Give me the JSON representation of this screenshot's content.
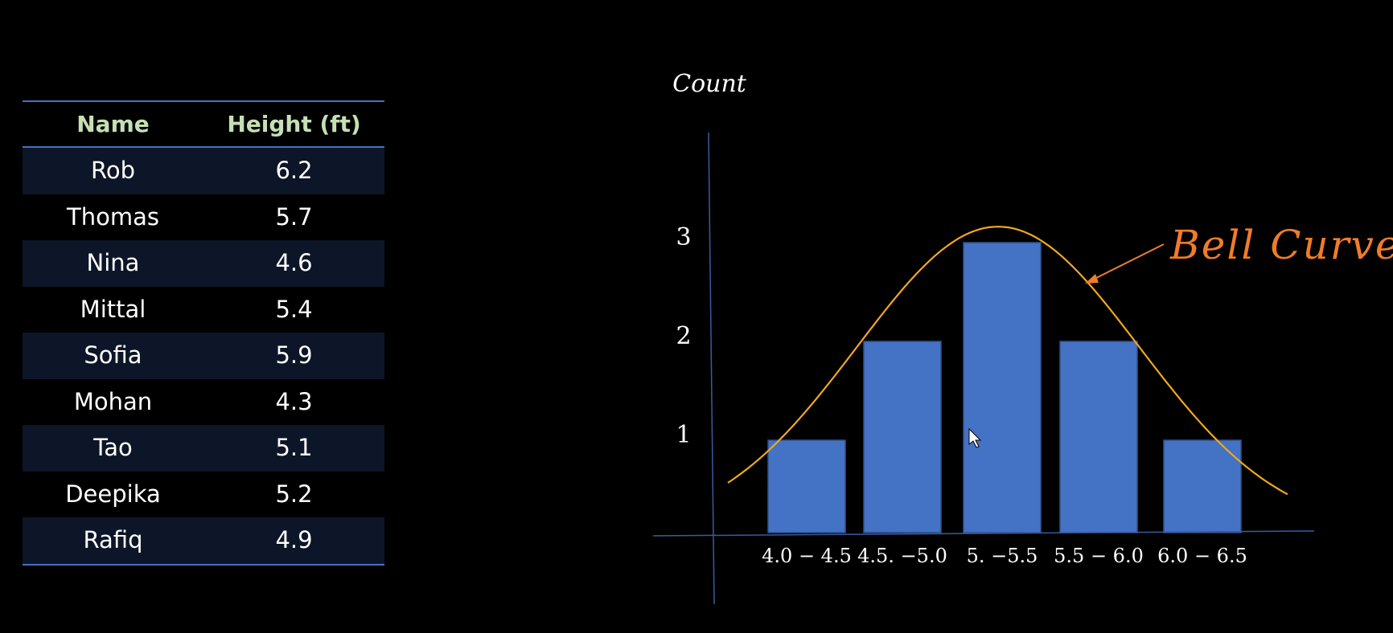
{
  "table": {
    "headers": {
      "name": "Name",
      "height": "Height (ft)"
    },
    "rows": [
      {
        "name": "Rob",
        "height": "6.2"
      },
      {
        "name": "Thomas",
        "height": "5.7"
      },
      {
        "name": "Nina",
        "height": "4.6"
      },
      {
        "name": "Mittal",
        "height": "5.4"
      },
      {
        "name": "Sofia",
        "height": "5.9"
      },
      {
        "name": "Mohan",
        "height": "4.3"
      },
      {
        "name": "Tao",
        "height": "5.1"
      },
      {
        "name": "Deepika",
        "height": "5.2"
      },
      {
        "name": "Rafiq",
        "height": "4.9"
      }
    ],
    "colors": {
      "header_text": "#c5e0b4",
      "rule": "#4472c4",
      "shaded_row": "#0c1628"
    }
  },
  "chart_data": {
    "type": "bar",
    "title": "",
    "xlabel": "",
    "ylabel": "Count",
    "categories": [
      "4.0 − 4.5",
      "4.5. −5.0",
      "5. −5.5",
      "5.5 − 6.0",
      "6.0 − 6.5"
    ],
    "values": [
      1,
      2,
      3,
      2,
      1
    ],
    "yticks": [
      "1",
      "2",
      "3"
    ],
    "ylim": [
      0,
      4
    ],
    "grid": false,
    "legend": "none",
    "annotation": {
      "text": "Bell Curve",
      "target": "curve"
    },
    "colors": {
      "bar": "#4472c4",
      "curve": "#f0a81e",
      "annotation": "#f07c2a",
      "axis": "#3b5aa0"
    }
  }
}
